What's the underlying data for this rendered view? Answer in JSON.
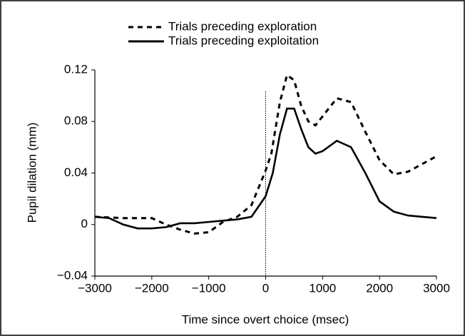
{
  "chart_data": {
    "type": "line",
    "x_label": "Time  since overt choice (msec)",
    "y_label": "Pupil dilation (mm)",
    "xlim": [
      -3000,
      3000
    ],
    "xticks": [
      {
        "value": -3000,
        "label": "−3000"
      },
      {
        "value": -2000,
        "label": "−2000"
      },
      {
        "value": -1000,
        "label": "−1000"
      },
      0,
      1000,
      2000,
      3000
    ],
    "ylim": [
      -0.04,
      0.12
    ],
    "yticks": [
      {
        "value": -0.04,
        "label": "−0.04"
      },
      0,
      0.04,
      0.08,
      0.12
    ],
    "reference_line_x": 0,
    "series": [
      {
        "name": "Trials preceding exploration",
        "color": "#000",
        "dash": true,
        "x": [
          -3000,
          -2500,
          -2000,
          -1750,
          -1500,
          -1250,
          -1000,
          -750,
          -500,
          -250,
          0,
          100,
          250,
          375,
          500,
          625,
          750,
          875,
          1000,
          1250,
          1500,
          1750,
          2000,
          2250,
          2500,
          2750,
          3000
        ],
        "values": [
          0.006,
          0.005,
          0.005,
          0.0,
          -0.004,
          -0.007,
          -0.006,
          0.002,
          0.006,
          0.015,
          0.042,
          0.055,
          0.095,
          0.116,
          0.112,
          0.092,
          0.08,
          0.077,
          0.084,
          0.098,
          0.095,
          0.072,
          0.05,
          0.039,
          0.041,
          0.047,
          0.053
        ]
      },
      {
        "name": "Trials preceding exploitation",
        "color": "#000",
        "dash": false,
        "x": [
          -3000,
          -2750,
          -2500,
          -2250,
          -2000,
          -1750,
          -1500,
          -1250,
          -1000,
          -750,
          -500,
          -250,
          0,
          125,
          250,
          375,
          500,
          625,
          750,
          875,
          1000,
          1250,
          1500,
          1750,
          2000,
          2250,
          2500,
          2750,
          3000
        ],
        "values": [
          0.006,
          0.005,
          0.0,
          -0.003,
          -0.003,
          -0.002,
          0.001,
          0.001,
          0.002,
          0.003,
          0.004,
          0.006,
          0.022,
          0.04,
          0.07,
          0.09,
          0.09,
          0.074,
          0.06,
          0.055,
          0.057,
          0.065,
          0.06,
          0.04,
          0.018,
          0.01,
          0.007,
          0.006,
          0.005
        ]
      }
    ]
  }
}
